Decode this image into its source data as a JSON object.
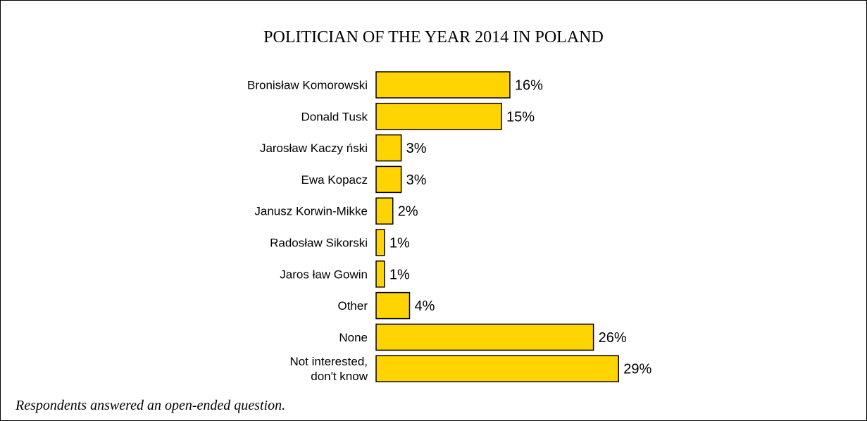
{
  "chart_data": {
    "type": "bar",
    "orientation": "horizontal",
    "title": "POLITICIAN OF THE YEAR 2014 IN POLAND",
    "categories": [
      [
        "Bronisław Komorowski"
      ],
      [
        "Donald Tusk"
      ],
      [
        "Jarosław Kaczy ński"
      ],
      [
        "Ewa Kopacz"
      ],
      [
        "Janusz Korwin-Mikke"
      ],
      [
        "Radosław Sikorski"
      ],
      [
        "Jaros ław Gowin"
      ],
      [
        "Other"
      ],
      [
        "None"
      ],
      [
        "Not interested,",
        "don't know"
      ]
    ],
    "values": [
      16,
      15,
      3,
      3,
      2,
      1,
      1,
      4,
      26,
      29
    ],
    "value_labels": [
      "16%",
      "15%",
      "3%",
      "3%",
      "2%",
      "1%",
      "1%",
      "4%",
      "26%",
      "29%"
    ],
    "unit": "%",
    "bar_color": "#FFD400",
    "grid": false,
    "legend": "none"
  },
  "footnote": "Respondents answered an open-ended question."
}
